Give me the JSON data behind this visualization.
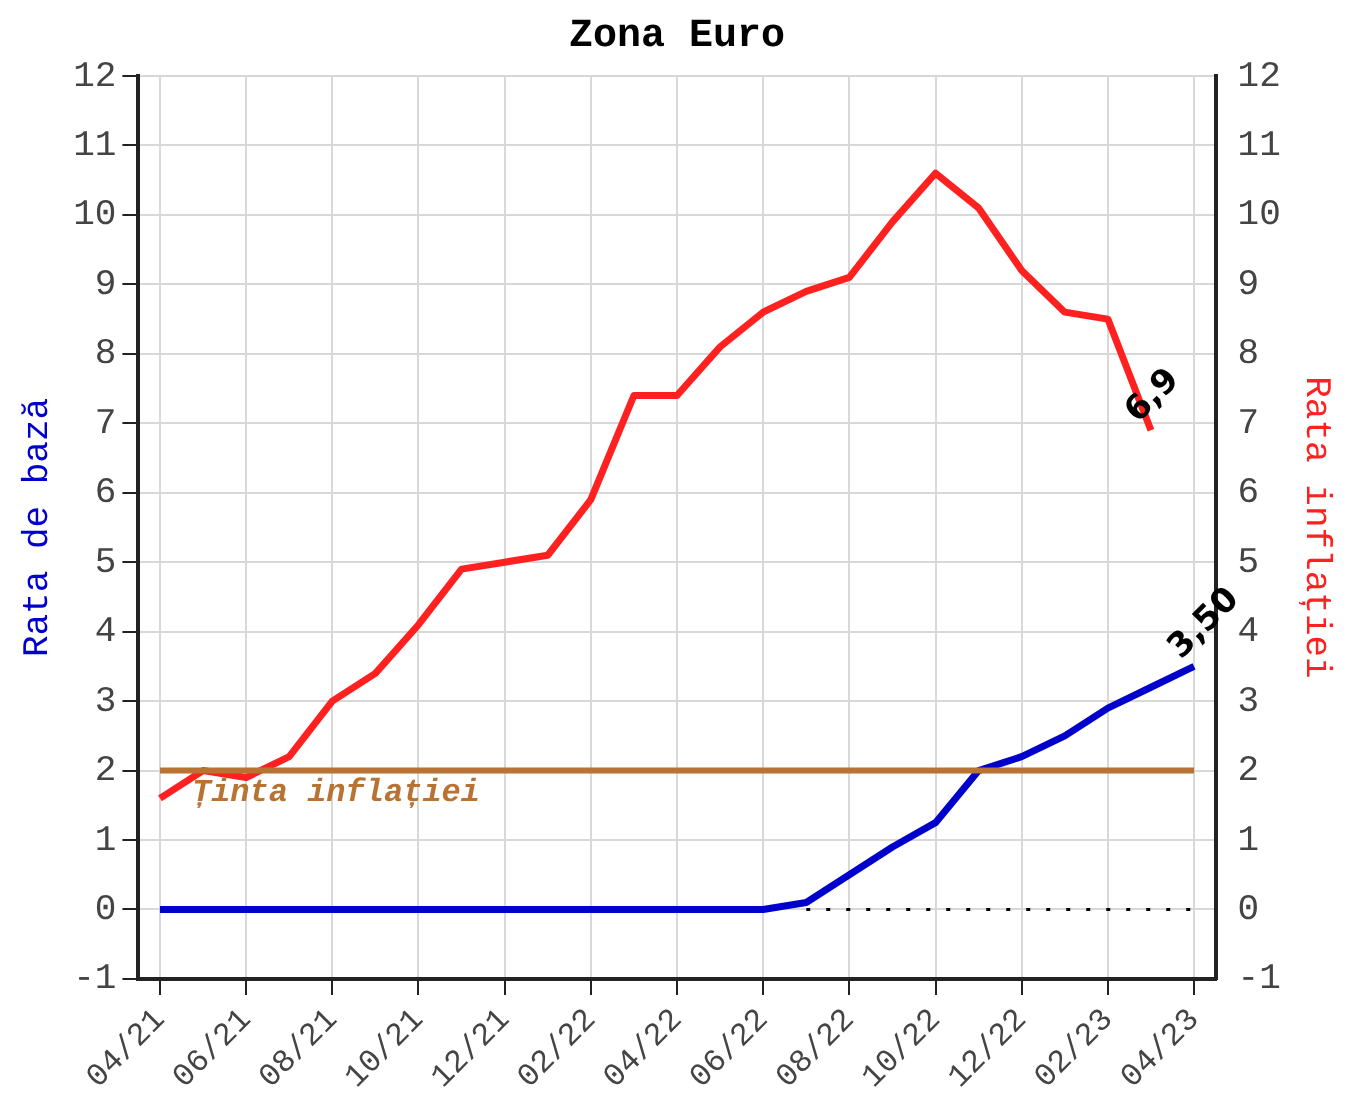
{
  "chart_data": {
    "type": "line",
    "title": "Zona Euro",
    "ylabel": "Rata de bază",
    "y2label": "Rata inflației",
    "categories": [
      "04/21",
      null,
      "06/21",
      null,
      "08/21",
      null,
      "10/21",
      null,
      "12/21",
      null,
      "02/22",
      null,
      "04/22",
      null,
      "06/22",
      null,
      "08/22",
      null,
      "10/22",
      null,
      "12/22",
      null,
      "02/23",
      null,
      "04/23"
    ],
    "series": [
      {
        "color": "#0000cc",
        "values": [
          0,
          0,
          0,
          0,
          0,
          0,
          0,
          0,
          0,
          0,
          0,
          0,
          0,
          0,
          0,
          0.1,
          0.5,
          0.9,
          1.25,
          2.0,
          2.2,
          2.5,
          2.9,
          3.2,
          3.5
        ],
        "value_labels": [
          null,
          null,
          null,
          null,
          null,
          null,
          null,
          null,
          null,
          null,
          null,
          null,
          null,
          null,
          null,
          null,
          null,
          null,
          null,
          null,
          null,
          null,
          null,
          null,
          "3,50"
        ]
      },
      {
        "color": "#ff2020",
        "axis": "y2",
        "values": [
          1.6,
          2.0,
          1.9,
          2.2,
          3.0,
          3.4,
          4.1,
          4.9,
          5.0,
          5.1,
          5.9,
          7.4,
          7.4,
          8.1,
          8.6,
          8.9,
          9.1,
          9.9,
          10.6,
          10.1,
          9.2,
          8.6,
          8.5,
          6.9,
          null
        ],
        "value_labels": [
          null,
          null,
          null,
          null,
          null,
          null,
          null,
          null,
          null,
          null,
          null,
          null,
          null,
          null,
          null,
          null,
          null,
          null,
          null,
          null,
          null,
          null,
          null,
          "6,9",
          null
        ]
      },
      {
        "color": "#000000",
        "line_style": "dotted",
        "values": [
          null,
          null,
          null,
          null,
          null,
          null,
          null,
          null,
          null,
          null,
          null,
          null,
          null,
          null,
          null,
          0,
          0,
          0,
          0,
          0,
          0,
          0,
          0,
          0,
          0
        ]
      }
    ],
    "ylim": [
      -1,
      12
    ],
    "yticks": [
      -1,
      0,
      1,
      2,
      3,
      4,
      5,
      6,
      7,
      8,
      9,
      10,
      11,
      12
    ],
    "y2lim": [
      -1,
      12
    ],
    "y2ticks": [
      -1,
      0,
      1,
      2,
      3,
      4,
      5,
      6,
      7,
      8,
      9,
      10,
      11,
      12
    ],
    "grid": true,
    "legend": false,
    "marker": "none",
    "ref_lines": [
      {
        "axis": "y",
        "value": 2,
        "label": "Ținta inflației",
        "color": "#b87333"
      }
    ]
  }
}
